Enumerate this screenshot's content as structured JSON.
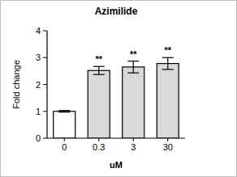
{
  "chart_data": {
    "type": "bar",
    "title": "Azimilide",
    "x_label": "uM",
    "y_label": "Fold change",
    "categories": [
      "0",
      "0.3",
      "3",
      "30"
    ],
    "values": [
      1.0,
      2.52,
      2.65,
      2.78
    ],
    "errors": [
      0.03,
      0.15,
      0.22,
      0.22
    ],
    "annotations": [
      null,
      "**",
      "**",
      "**"
    ],
    "colors": [
      "#ffffff",
      "#d9d9d9",
      "#d9d9d9",
      "#d9d9d9"
    ],
    "ylim": [
      0,
      4
    ],
    "yticks": [
      0,
      1,
      2,
      3,
      4
    ],
    "grid": false
  }
}
